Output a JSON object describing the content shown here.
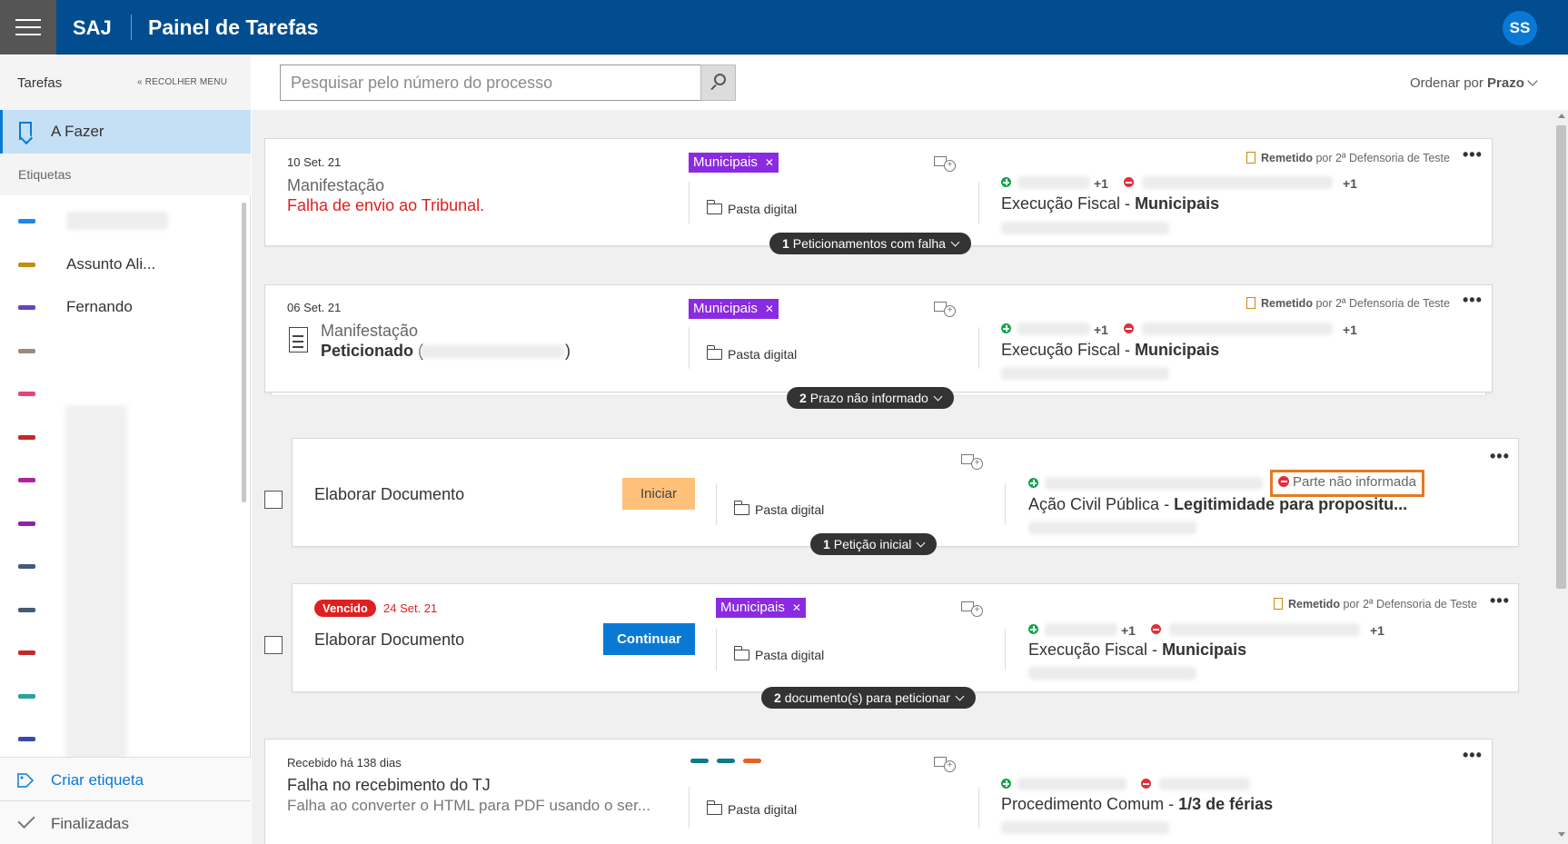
{
  "header": {
    "brand": "SAJ",
    "title": "Painel de Tarefas",
    "avatar_initials": "SS"
  },
  "sidebar": {
    "title": "Tarefas",
    "collapse_label": "« RECOLHER MENU",
    "active_item": "A Fazer",
    "labels_heading": "Etiquetas",
    "labels": [
      {
        "text": "",
        "color": "#1e88e5"
      },
      {
        "text": "Assunto Ali...",
        "color": "#c58b13"
      },
      {
        "text": "Fernando",
        "color": "#6a3fc8"
      },
      {
        "text": "",
        "color": "#a1887f"
      },
      {
        "text": "",
        "color": "#ec407a"
      },
      {
        "text": "",
        "color": "#c62828"
      },
      {
        "text": "",
        "color": "#b0239c"
      },
      {
        "text": "",
        "color": "#8e24aa"
      },
      {
        "text": "",
        "color": "#455a73"
      },
      {
        "text": "",
        "color": "#455a73"
      },
      {
        "text": "",
        "color": "#c62828"
      },
      {
        "text": "",
        "color": "#26a69a"
      },
      {
        "text": "",
        "color": "#3949ab"
      }
    ],
    "create_label": "Criar etiqueta",
    "finished": "Finalizadas"
  },
  "search": {
    "placeholder": "Pesquisar pelo número do processo"
  },
  "sort": {
    "prefix": "Ordenar por",
    "value": "Prazo"
  },
  "cards": [
    {
      "date": "10 Set. 21",
      "type": "Manifestação",
      "status": "Falha de envio ao Tribunal.",
      "tag": "Municipais",
      "folder": "Pasta digital",
      "remetido_label": "Remetido",
      "remetido_by": "por 2ª Defensoria de Teste",
      "plus_one_a": "+1",
      "plus_one_b": "+1",
      "process_class": "Execução Fiscal - ",
      "process_subject": "Municipais",
      "pill_count": "1",
      "pill_text": "Peticionamentos com falha"
    },
    {
      "date": "06 Set. 21",
      "type": "Manifestação",
      "status": "Peticionado",
      "status_open": "(",
      "status_close": ")",
      "tag": "Municipais",
      "folder": "Pasta digital",
      "remetido_label": "Remetido",
      "remetido_by": "por 2ª Defensoria de Teste",
      "plus_one_a": "+1",
      "plus_one_b": "+1",
      "process_class": "Execução Fiscal - ",
      "process_subject": "Municipais",
      "pill_count": "2",
      "pill_text": "Prazo não informado"
    },
    {
      "title": "Elaborar Documento",
      "button": "Iniciar",
      "folder": "Pasta digital",
      "warning": "Parte não informada",
      "process_class": "Ação Civil Pública - ",
      "process_subject": "Legitimidade para propositu...",
      "pill_count": "1",
      "pill_text": "Petição inicial"
    },
    {
      "badge": "Vencido",
      "date": "24 Set. 21",
      "title": "Elaborar Documento",
      "button": "Continuar",
      "tag": "Municipais",
      "folder": "Pasta digital",
      "remetido_label": "Remetido",
      "remetido_by": "por 2ª Defensoria de Teste",
      "plus_one_a": "+1",
      "plus_one_b": "+1",
      "process_class": "Execução Fiscal - ",
      "process_subject": "Municipais",
      "pill_count": "2",
      "pill_text": "documento(s) para peticionar"
    },
    {
      "date": "Recebido há 138 dias",
      "title": "Falha no recebimento do TJ",
      "subtitle": "Falha ao converter o HTML para PDF usando o ser...",
      "folder": "Pasta digital",
      "tag_colors": [
        "#0e7a8a",
        "#0e7a8a",
        "#e8601c"
      ],
      "process_class": "Procedimento Comum - ",
      "process_subject": "1/3 de férias"
    }
  ]
}
